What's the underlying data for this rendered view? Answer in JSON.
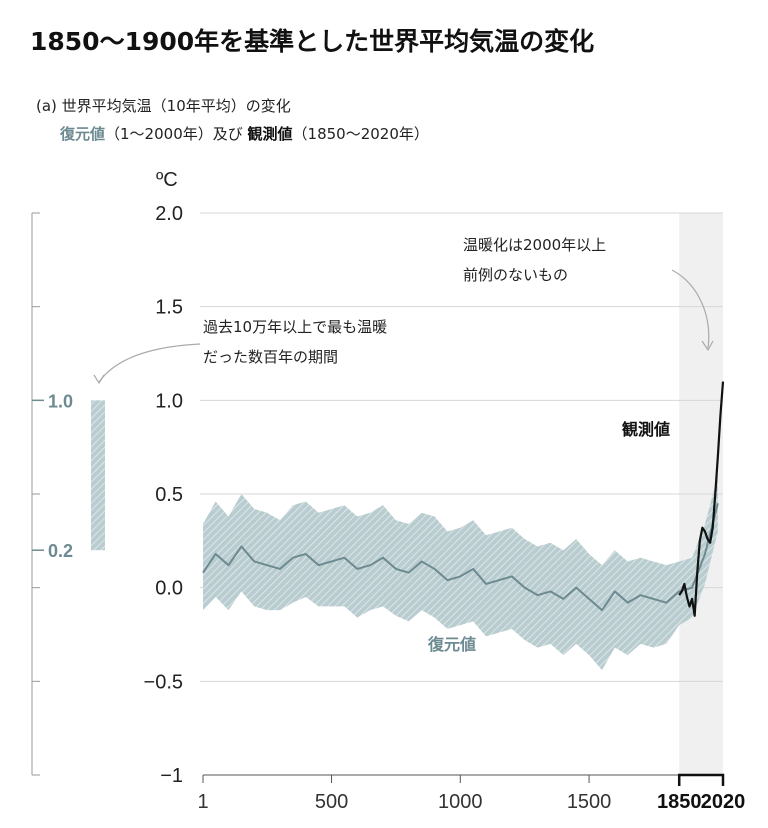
{
  "title": "1850〜1900年を基準とした世界平均気温の変化",
  "subtitle": {
    "prefix": "(a) 世界平均気温（10年平均）の変化",
    "reconstructed": "復元値",
    "middle": "（1〜2000年）及び ",
    "observed": "観測値",
    "suffix": "（1850〜2020年）"
  },
  "annotations": {
    "unit": "ºC",
    "warmest_period": [
      "過去10万年以上で最も温暖",
      "だった数百年の期間"
    ],
    "unprecedented": [
      "温暖化は2000年以上",
      "前例のないもの"
    ],
    "reconstructed_label": "復元値",
    "observed_label": "観測値"
  },
  "side_scale": {
    "top_label": "1.0",
    "bottom_label": "0.2"
  },
  "colors": {
    "reconstructed_line": "#6d8a91",
    "reconstructed_band": "#b9cdd0",
    "observed_line": "#111111",
    "recent_shading": "#f0f0f0",
    "gridline": "#d7d7d7"
  },
  "chart_data": {
    "type": "line",
    "title": "(a) 世界平均気温（10年平均）の変化",
    "xlabel": "",
    "ylabel": "ºC",
    "xlim": [
      1,
      2020
    ],
    "ylim": [
      -1,
      2
    ],
    "y_ticks": [
      {
        "value": 2.0,
        "label": "2.0"
      },
      {
        "value": 1.5,
        "label": "1.5"
      },
      {
        "value": 1.0,
        "label": "1.0"
      },
      {
        "value": 0.5,
        "label": "0.5"
      },
      {
        "value": 0.0,
        "label": "0.0"
      },
      {
        "value": -0.5,
        "label": "−0.5"
      },
      {
        "value": -1.0,
        "label": "−1"
      }
    ],
    "x_ticks": [
      {
        "value": 1,
        "label": "1",
        "bold": false
      },
      {
        "value": 500,
        "label": "500",
        "bold": false
      },
      {
        "value": 1000,
        "label": "1000",
        "bold": false
      },
      {
        "value": 1500,
        "label": "1500",
        "bold": false
      },
      {
        "value": 1850,
        "label": "1850",
        "bold": true
      },
      {
        "value": 2020,
        "label": "2020",
        "bold": true
      }
    ],
    "grid": true,
    "shaded_region": [
      1850,
      2020
    ],
    "side_bar_range": [
      0.2,
      1.0
    ],
    "series": [
      {
        "name": "復元値",
        "x": [
          1,
          50,
          100,
          150,
          200,
          250,
          300,
          350,
          400,
          450,
          500,
          550,
          600,
          650,
          700,
          750,
          800,
          850,
          900,
          950,
          1000,
          1050,
          1100,
          1150,
          1200,
          1250,
          1300,
          1350,
          1400,
          1450,
          1500,
          1550,
          1600,
          1650,
          1700,
          1750,
          1800,
          1850,
          1900,
          1950,
          2000
        ],
        "values": [
          0.08,
          0.18,
          0.12,
          0.22,
          0.14,
          0.12,
          0.1,
          0.16,
          0.18,
          0.12,
          0.14,
          0.16,
          0.1,
          0.12,
          0.16,
          0.1,
          0.08,
          0.14,
          0.1,
          0.04,
          0.06,
          0.1,
          0.02,
          0.04,
          0.06,
          0.0,
          -0.04,
          -0.02,
          -0.06,
          0.0,
          -0.06,
          -0.12,
          -0.02,
          -0.08,
          -0.04,
          -0.06,
          -0.08,
          -0.02,
          0.0,
          0.18,
          0.45
        ],
        "lower": [
          -0.12,
          -0.05,
          -0.12,
          -0.02,
          -0.1,
          -0.12,
          -0.12,
          -0.08,
          -0.05,
          -0.1,
          -0.1,
          -0.1,
          -0.16,
          -0.12,
          -0.1,
          -0.15,
          -0.18,
          -0.12,
          -0.16,
          -0.22,
          -0.2,
          -0.18,
          -0.26,
          -0.24,
          -0.22,
          -0.28,
          -0.32,
          -0.3,
          -0.36,
          -0.3,
          -0.36,
          -0.44,
          -0.32,
          -0.36,
          -0.3,
          -0.32,
          -0.3,
          -0.2,
          -0.16,
          0.02,
          0.3
        ],
        "upper": [
          0.34,
          0.46,
          0.38,
          0.5,
          0.42,
          0.4,
          0.36,
          0.44,
          0.46,
          0.4,
          0.42,
          0.44,
          0.38,
          0.4,
          0.44,
          0.36,
          0.34,
          0.4,
          0.38,
          0.3,
          0.32,
          0.36,
          0.28,
          0.3,
          0.32,
          0.26,
          0.22,
          0.24,
          0.2,
          0.26,
          0.18,
          0.12,
          0.2,
          0.14,
          0.16,
          0.14,
          0.12,
          0.14,
          0.16,
          0.34,
          0.6
        ]
      },
      {
        "name": "観測値",
        "x": [
          1850,
          1860,
          1870,
          1880,
          1890,
          1900,
          1910,
          1920,
          1930,
          1940,
          1950,
          1960,
          1970,
          1980,
          1990,
          2000,
          2010,
          2020
        ],
        "values": [
          -0.04,
          -0.02,
          0.02,
          -0.05,
          -0.1,
          -0.06,
          -0.15,
          0.08,
          0.25,
          0.32,
          0.3,
          0.26,
          0.24,
          0.32,
          0.5,
          0.7,
          0.92,
          1.1
        ]
      }
    ]
  }
}
